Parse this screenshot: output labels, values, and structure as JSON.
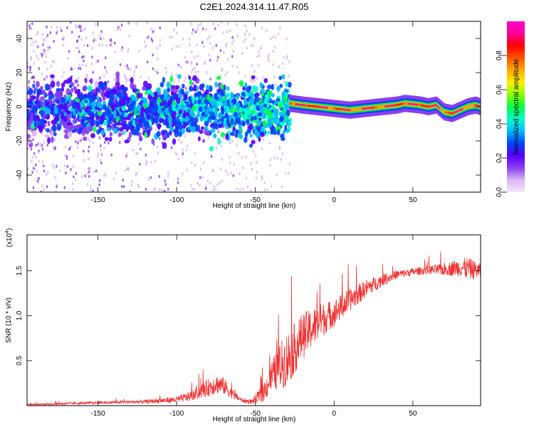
{
  "title": "C2E1.2024.314.11.47.R05",
  "chart_data": [
    {
      "type": "heatmap",
      "title": "C2E1.2024.314.11.47.R05",
      "xlabel": "Height of straight line (km)",
      "ylabel": "Frequency (Hz)",
      "xlim": [
        -195,
        93
      ],
      "ylim": [
        -50,
        50
      ],
      "xticks": [
        -150,
        -100,
        -50,
        0,
        50
      ],
      "yticks": [
        -40,
        -20,
        0,
        20,
        40
      ],
      "colorbar": {
        "label": "Normalized spectral amplitude",
        "range": [
          0,
          1
        ],
        "ticks": [
          "0.0",
          "0.2",
          "0.4",
          "0.6",
          "0.8"
        ],
        "tick_values": [
          0.0,
          0.2,
          0.4,
          0.6,
          0.8
        ],
        "colors": [
          "#f4e6fb",
          "#d9b7f5",
          "#8a3ff0",
          "#5500ff",
          "#0044ff",
          "#00bbff",
          "#00ffcc",
          "#00ff44",
          "#88ff00",
          "#ffee00",
          "#ffaa00",
          "#ff5500",
          "#ff0000",
          "#ff0099",
          "#ff00cc"
        ]
      },
      "noisy_region": {
        "x_range": [
          -195,
          -28
        ],
        "center_freq_hz": -2,
        "spread_hz": 8
      },
      "trace": {
        "x": [
          -28,
          -20,
          -10,
          0,
          10,
          20,
          30,
          40,
          45,
          55,
          60,
          65,
          70,
          75,
          80,
          85,
          90,
          93
        ],
        "freq": [
          2,
          1,
          0,
          -1,
          -2,
          -1,
          0,
          1,
          2,
          1,
          0,
          1,
          -3,
          -4,
          -2,
          0,
          1,
          0
        ]
      }
    },
    {
      "type": "line",
      "xlabel": "Height of straight line (km)",
      "ylabel": "SNR (10 * v/v)",
      "exponent_label": "(x10",
      "exponent_value": "4",
      "exponent_close": ")",
      "xlim": [
        -195,
        93
      ],
      "ylim": [
        0,
        1.9
      ],
      "xticks": [
        -150,
        -100,
        -50,
        0,
        50
      ],
      "yticks": [
        0.5,
        1.0,
        1.5
      ],
      "ytick_labels": [
        "0.5",
        "1.0",
        "1.5"
      ],
      "series_color": "#ee3333",
      "envelope": {
        "x": [
          -195,
          -170,
          -150,
          -120,
          -100,
          -90,
          -80,
          -75,
          -70,
          -65,
          -58,
          -52,
          -45,
          -40,
          -35,
          -30,
          -25,
          -20,
          -15,
          -10,
          -5,
          0,
          10,
          20,
          30,
          40,
          50,
          60,
          70,
          80,
          85,
          93
        ],
        "base": [
          0.01,
          0.02,
          0.03,
          0.04,
          0.06,
          0.1,
          0.18,
          0.22,
          0.2,
          0.12,
          0.05,
          0.04,
          0.12,
          0.28,
          0.38,
          0.45,
          0.58,
          0.72,
          0.8,
          0.88,
          0.95,
          1.0,
          1.15,
          1.28,
          1.38,
          1.45,
          1.48,
          1.5,
          1.5,
          1.52,
          1.5,
          1.48
        ],
        "noise": [
          0.01,
          0.02,
          0.02,
          0.03,
          0.05,
          0.08,
          0.14,
          0.16,
          0.14,
          0.08,
          0.03,
          0.04,
          0.15,
          0.25,
          0.35,
          0.45,
          0.4,
          0.38,
          0.32,
          0.3,
          0.25,
          0.22,
          0.18,
          0.14,
          0.1,
          0.07,
          0.06,
          0.07,
          0.1,
          0.14,
          0.18,
          0.12
        ]
      }
    }
  ]
}
